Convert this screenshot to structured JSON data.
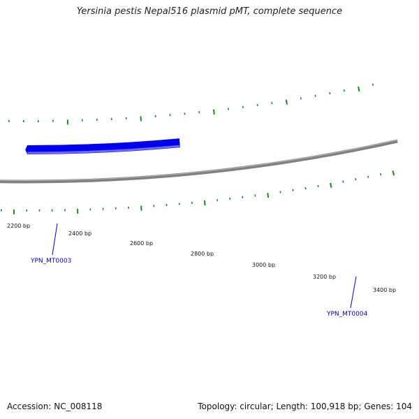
{
  "title": "Yersinia pestis Nepal516 plasmid pMT, complete sequence",
  "footer": {
    "accession": "Accession: NC_008118",
    "summary": "Topology: circular; Length: 100,918 bp; Genes: 104"
  },
  "colors": {
    "backbone": "#808080",
    "gene": "#0000ee",
    "gene_highlight": "#6a6aff",
    "feature_ticks": "#1a8a1a",
    "label": "#0000cc"
  },
  "scale_labels": [
    "2200 bp",
    "2400 bp",
    "2600 bp",
    "2800 bp",
    "3000 bp",
    "3200 bp",
    "3400 bp"
  ],
  "genes": [
    {
      "name": "YPN_MT0003",
      "strand": "forward"
    },
    {
      "name": "YPN_MT0004",
      "strand": "reverse"
    }
  ]
}
